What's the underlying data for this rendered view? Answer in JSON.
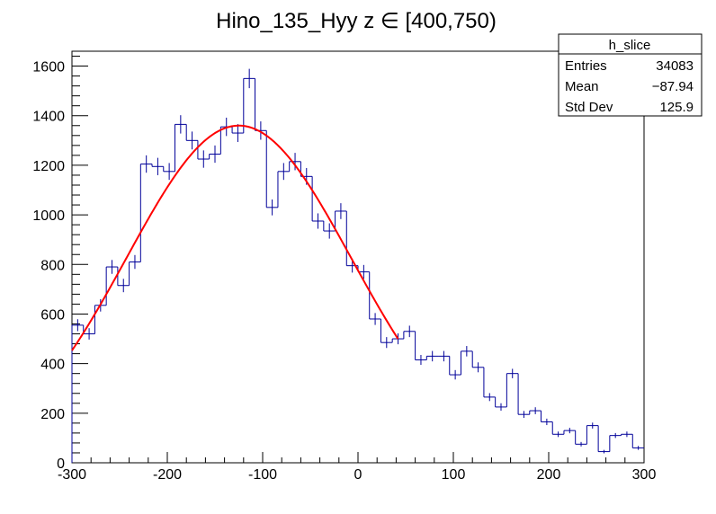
{
  "chart_data": {
    "type": "histogram",
    "title": "Hino_135_Hyy z  ∈ [400,750)",
    "xlabel": "",
    "ylabel": "",
    "xlim": [
      -300,
      300
    ],
    "ylim": [
      0,
      1660
    ],
    "x_ticks": [
      -300,
      -200,
      -100,
      0,
      100,
      200,
      300
    ],
    "y_ticks": [
      0,
      200,
      400,
      600,
      800,
      1000,
      1200,
      1400,
      1600
    ],
    "bin_width": 12,
    "bin_low_edges": [
      -300,
      -288,
      -276,
      -264,
      -252,
      -240,
      -228,
      -216,
      -204,
      -192,
      -180,
      -168,
      -156,
      -144,
      -132,
      -120,
      -108,
      -96,
      -84,
      -72,
      -60,
      -48,
      -36,
      -24,
      -12,
      0,
      12,
      24,
      36,
      48,
      60,
      72,
      84,
      96,
      108,
      120,
      132,
      144,
      156,
      168,
      180,
      192,
      204,
      216,
      228,
      240,
      252,
      264,
      276,
      288
    ],
    "bin_values": [
      555,
      520,
      635,
      790,
      715,
      810,
      1205,
      1195,
      1175,
      1365,
      1300,
      1225,
      1245,
      1355,
      1330,
      1550,
      1340,
      1030,
      1175,
      1215,
      1155,
      975,
      935,
      1015,
      795,
      770,
      580,
      485,
      500,
      530,
      415,
      430,
      430,
      355,
      450,
      385,
      265,
      225,
      360,
      195,
      210,
      165,
      115,
      130,
      75,
      150,
      45,
      110,
      115,
      60
    ],
    "bin_errors": [
      24,
      23,
      25,
      28,
      27,
      28,
      35,
      35,
      34,
      37,
      36,
      35,
      35,
      37,
      36,
      39,
      37,
      32,
      34,
      35,
      34,
      31,
      31,
      32,
      28,
      28,
      24,
      22,
      22,
      23,
      20,
      21,
      21,
      19,
      21,
      20,
      16,
      15,
      19,
      14,
      14,
      13,
      11,
      11,
      9,
      12,
      7,
      10,
      11,
      8
    ],
    "line_color": "#000099",
    "fit": {
      "type": "gaussian",
      "color": "#ff0000",
      "x_range": [
        -300,
        42
      ],
      "amplitude": 1360,
      "mean": -125,
      "sigma": 118
    },
    "stats_box": {
      "title": "h_slice",
      "rows": [
        {
          "label": "Entries",
          "value": "34083"
        },
        {
          "label": "Mean",
          "value": "−87.94"
        },
        {
          "label": "Std Dev",
          "value": "125.9"
        }
      ]
    }
  }
}
